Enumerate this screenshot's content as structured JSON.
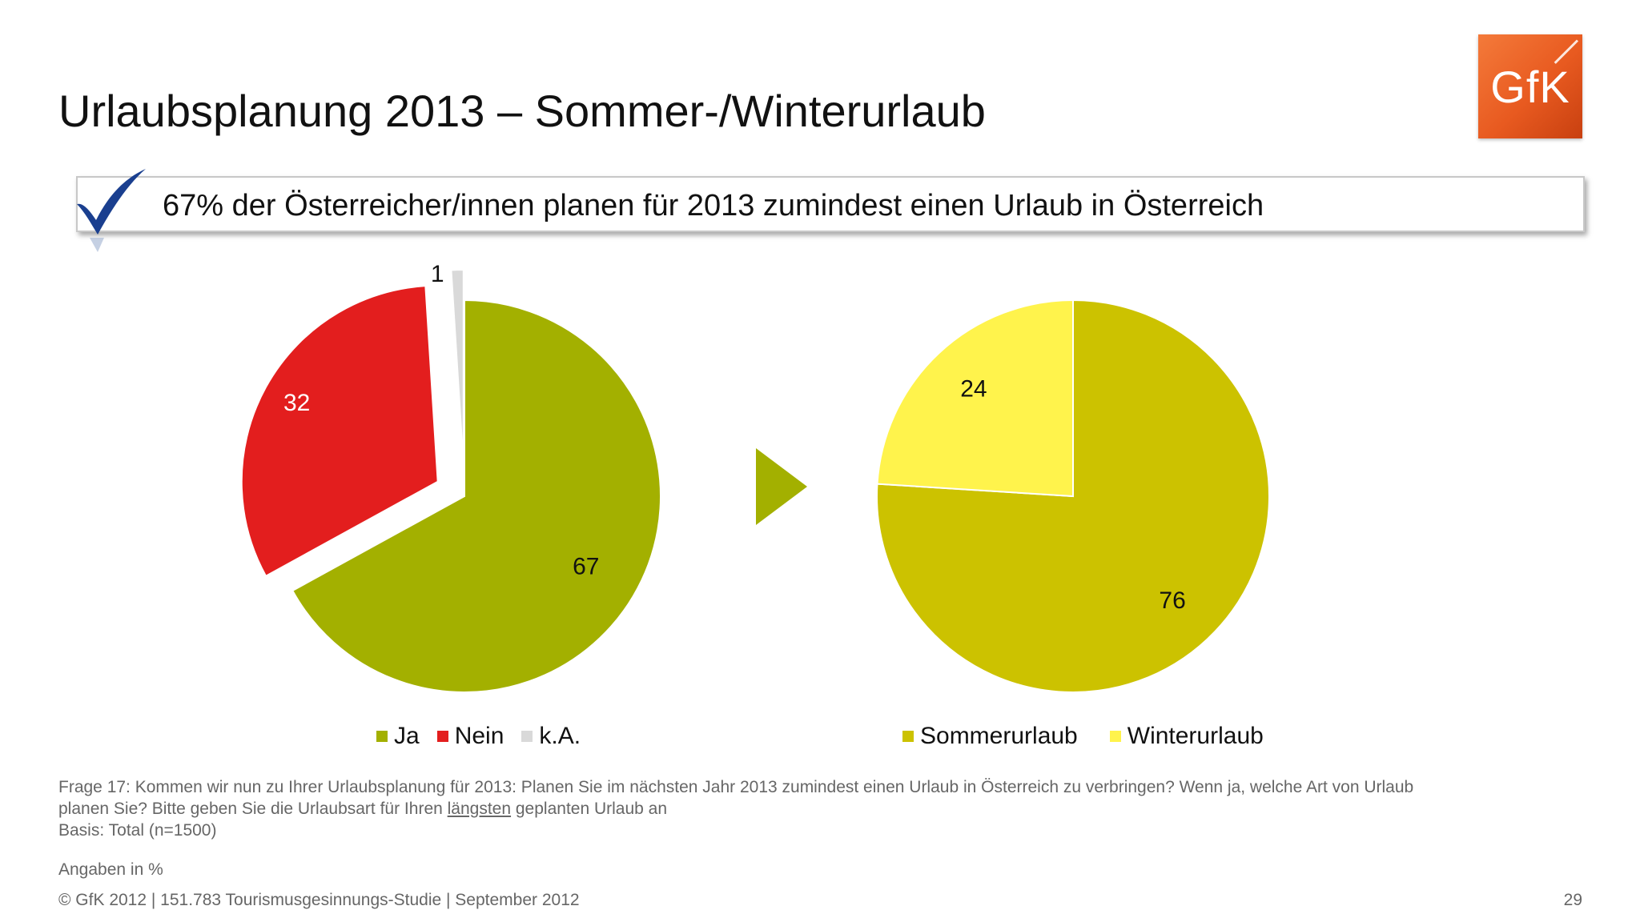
{
  "slide": {
    "title": "Urlaubsplanung 2013 – Sommer-/Winterurlaub",
    "logo_text": "GfK",
    "headline": "67% der Österreicher/innen planen für 2013 zumindest einen Urlaub in Österreich",
    "question_line1": "Frage 17: Kommen wir nun zu Ihrer Urlaubsplanung für 2013: Planen Sie im nächsten Jahr 2013 zumindest einen Urlaub in Österreich zu verbringen? Wenn ja, welche Art von Urlaub",
    "question_line2_pre": "planen Sie? Bitte geben Sie die Urlaubsart für Ihren ",
    "question_line2_underlined": "längsten",
    "question_line2_post": " geplanten Urlaub an",
    "basis": "Basis: Total (n=1500)",
    "unit_note": "Angaben in %",
    "copyright": "© GfK 2012 | 151.783 Tourismusgesinnungs-Studie | September 2012",
    "page_number": "29"
  },
  "colors": {
    "ja": "#a3b000",
    "nein": "#e31e1e",
    "ka": "#d9d9d9",
    "sommer": "#ccc200",
    "winter": "#fff34c",
    "arrow": "#a3b000",
    "check": "#1a3f8f"
  },
  "chart_data": [
    {
      "type": "pie",
      "exploded": true,
      "slices": [
        {
          "label": "Ja",
          "value": 67,
          "color": "#a3b000"
        },
        {
          "label": "Nein",
          "value": 32,
          "color": "#e31e1e"
        },
        {
          "label": "k.A.",
          "value": 1,
          "color": "#d9d9d9"
        }
      ],
      "legend": [
        "Ja",
        "Nein",
        "k.A."
      ],
      "legend_position": "bottom"
    },
    {
      "type": "pie",
      "slices": [
        {
          "label": "Sommerurlaub",
          "value": 76,
          "color": "#ccc200"
        },
        {
          "label": "Winterurlaub",
          "value": 24,
          "color": "#fff34c"
        }
      ],
      "legend": [
        "Sommerurlaub",
        "Winterurlaub"
      ],
      "legend_position": "bottom"
    }
  ]
}
